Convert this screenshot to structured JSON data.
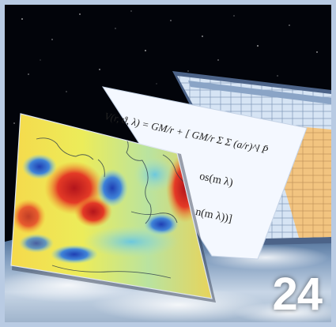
{
  "image": {
    "subject": "Layered sheets: colour-coded world map, gravitational potential formula, data table, over Earth horizon",
    "colors": {
      "frame": "#b9cbe3",
      "space": "#02040a",
      "map_hot": "#c81e1e",
      "map_warm": "#f6e24a",
      "map_neutral": "#9bd6c8",
      "map_cool": "#2d57c8",
      "table_orange": "#f3c27a",
      "table_blue": "#bcd3ec",
      "paper": "#f4f8ff"
    }
  },
  "page_number": "24",
  "formula": {
    "line1_left": "V(r, ϑ, λ) = GM/r + [ GM/r Σ Σ (a/r)^l P̄",
    "fragment_cos": "os(m λ)",
    "fragment_sin": "n(m λ))]"
  }
}
